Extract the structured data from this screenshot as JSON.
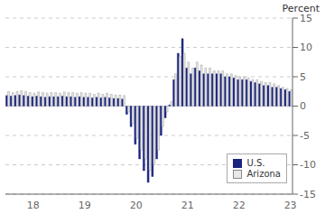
{
  "chart_data": {
    "type": "bar",
    "title": "Percent",
    "categories": [
      null,
      null,
      null,
      null,
      null,
      null,
      "18",
      null,
      null,
      null,
      null,
      null,
      null,
      null,
      null,
      null,
      null,
      null,
      "19",
      null,
      null,
      null,
      null,
      null,
      null,
      null,
      null,
      null,
      null,
      null,
      "20",
      null,
      null,
      null,
      null,
      null,
      null,
      null,
      null,
      null,
      null,
      null,
      "21",
      null,
      null,
      null,
      null,
      null,
      null,
      null,
      null,
      null,
      null,
      null,
      "22",
      null,
      null,
      null,
      null,
      null,
      null,
      null,
      null,
      null,
      null,
      null,
      "23"
    ],
    "series": [
      {
        "name": "U.S.",
        "color": "#1a237e",
        "values": [
          1.8,
          1.7,
          1.8,
          1.9,
          1.8,
          1.7,
          1.6,
          1.7,
          1.6,
          1.5,
          1.6,
          1.6,
          1.6,
          1.7,
          1.6,
          1.6,
          1.5,
          1.6,
          1.5,
          1.5,
          1.4,
          1.5,
          1.4,
          1.5,
          1.4,
          1.3,
          1.3,
          1.2,
          -1.4,
          -3.5,
          -6.5,
          -9.0,
          -11.0,
          -13.0,
          -12.0,
          -9.0,
          -5.0,
          -2.0,
          0.2,
          4.5,
          9.0,
          11.5,
          6.5,
          5.5,
          6.5,
          6.0,
          5.5,
          5.5,
          5.5,
          5.5,
          5.5,
          5.0,
          5.0,
          4.8,
          4.5,
          4.5,
          4.5,
          4.2,
          4.0,
          3.8,
          3.5,
          3.5,
          3.2,
          3.2,
          3.0,
          2.8,
          2.5
        ]
      },
      {
        "name": "Arizona",
        "color": "#e8e8e8",
        "values": [
          2.5,
          2.3,
          2.5,
          2.6,
          2.5,
          2.3,
          2.2,
          2.4,
          2.3,
          2.2,
          2.3,
          2.3,
          2.2,
          2.4,
          2.3,
          2.3,
          2.2,
          2.3,
          2.2,
          2.2,
          2.0,
          2.2,
          2.0,
          2.2,
          2.0,
          1.9,
          1.9,
          1.8,
          -1.0,
          -3.0,
          -5.5,
          -7.5,
          -9.0,
          -11.0,
          -10.0,
          -7.5,
          -3.5,
          -1.0,
          0.8,
          5.5,
          8.5,
          9.0,
          7.5,
          6.5,
          7.5,
          7.0,
          6.5,
          6.5,
          6.0,
          6.0,
          6.0,
          5.5,
          5.5,
          5.2,
          5.0,
          5.0,
          4.8,
          4.5,
          4.5,
          4.2,
          4.0,
          4.0,
          3.8,
          3.5,
          3.2,
          3.0,
          2.8
        ]
      }
    ],
    "ylim": [
      -15,
      15
    ],
    "yticks": [
      -15,
      -10,
      -5,
      0,
      5,
      10,
      15
    ],
    "grid": true,
    "legend": "lower right"
  }
}
